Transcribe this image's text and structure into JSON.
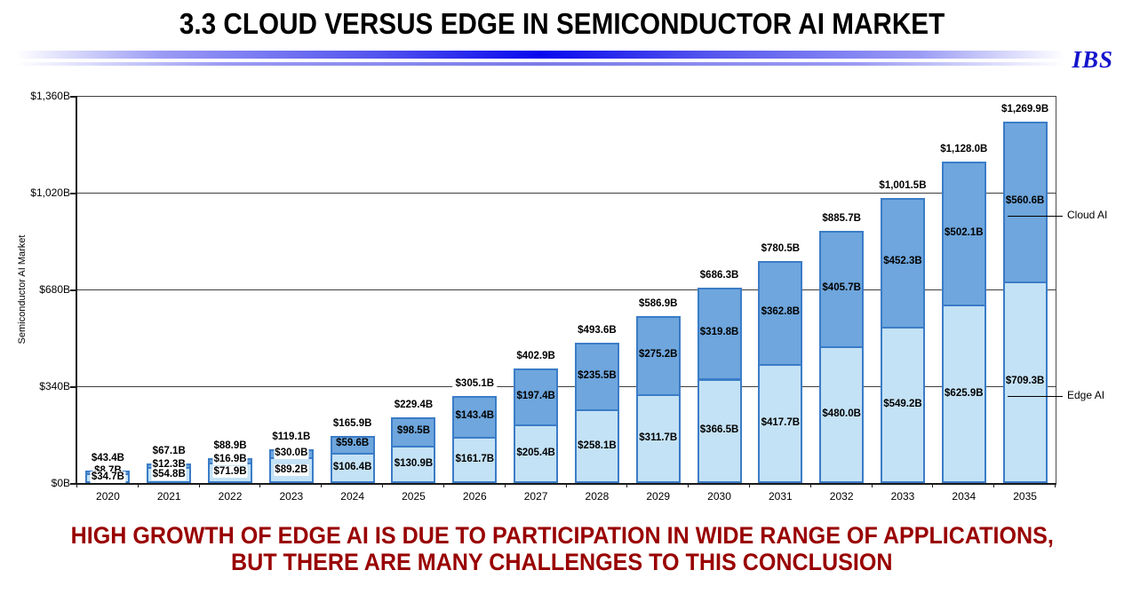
{
  "header": {
    "title": "3.3  CLOUD VERSUS EDGE IN SEMICONDUCTOR AI MARKET",
    "logo": "IBS"
  },
  "footer": {
    "line1": "HIGH GROWTH OF EDGE AI IS DUE TO PARTICIPATION IN WIDE RANGE OF APPLICATIONS,",
    "line2": "BUT THERE ARE MANY CHALLENGES TO THIS CONCLUSION"
  },
  "chart_data": {
    "type": "bar",
    "stacked": true,
    "ylabel": "Semiconductor AI Market",
    "ylim": [
      0,
      1360
    ],
    "ytick_step": 340,
    "ytick_labels": [
      "$0B",
      "$340B",
      "$680B",
      "$1,020B",
      "$1,360B"
    ],
    "grid": true,
    "categories": [
      "2020",
      "2021",
      "2022",
      "2023",
      "2024",
      "2025",
      "2026",
      "2027",
      "2028",
      "2029",
      "2030",
      "2031",
      "2032",
      "2033",
      "2034",
      "2035"
    ],
    "series": [
      {
        "name": "Edge AI",
        "color": "#C4E2F5",
        "values": [
          34.7,
          54.8,
          71.9,
          89.2,
          106.4,
          130.9,
          161.7,
          205.4,
          258.1,
          311.7,
          366.5,
          417.7,
          480.0,
          549.2,
          625.9,
          709.3
        ],
        "labels": [
          "$34.7B",
          "$54.8B",
          "$71.9B",
          "$89.2B",
          "$106.4B",
          "$130.9B",
          "$161.7B",
          "$205.4B",
          "$258.1B",
          "$311.7B",
          "$366.5B",
          "$417.7B",
          "$480.0B",
          "$549.2B",
          "$625.9B",
          "$709.3B"
        ]
      },
      {
        "name": "Cloud AI",
        "color": "#6EA6DD",
        "values": [
          8.7,
          12.3,
          16.9,
          30.0,
          59.6,
          98.5,
          143.4,
          197.4,
          235.5,
          275.2,
          319.8,
          362.8,
          405.7,
          452.3,
          502.1,
          560.6
        ],
        "labels": [
          "$8.7B",
          "$12.3B",
          "$16.9B",
          "$30.0B",
          "$59.6B",
          "$98.5B",
          "$143.4B",
          "$197.4B",
          "$235.5B",
          "$275.2B",
          "$319.8B",
          "$362.8B",
          "$405.7B",
          "$452.3B",
          "$502.1B",
          "$560.6B"
        ]
      }
    ],
    "totals": [
      43.4,
      67.1,
      88.9,
      119.1,
      165.9,
      229.4,
      305.1,
      402.9,
      493.6,
      586.9,
      686.3,
      780.5,
      885.7,
      1001.5,
      1128.0,
      1269.9
    ],
    "total_labels": [
      "$43.4B",
      "$67.1B",
      "$88.9B",
      "$119.1B",
      "$165.9B",
      "$229.4B",
      "$305.1B",
      "$402.9B",
      "$493.6B",
      "$586.9B",
      "$686.3B",
      "$780.5B",
      "$885.7B",
      "$1,001.5B",
      "$1,128.0B",
      "$1,269.9B"
    ],
    "legend": [
      {
        "label": "Cloud AI",
        "series": 1
      },
      {
        "label": "Edge AI",
        "series": 0
      }
    ],
    "legend_position": "right-callout"
  },
  "colors": {
    "bar_border": "#3B7CC7",
    "cloud_fill": "#6EA6DD",
    "edge_fill": "#C4E2F5",
    "grid_line": "#3f3f3f",
    "footer_red": "#990000",
    "logo_blue": "#1414CC",
    "divider_deep": "#0808EE",
    "divider_mid": "#5555EE",
    "divider_soft": "#9A9AF5",
    "divider_thin": "#7B7BE8"
  }
}
